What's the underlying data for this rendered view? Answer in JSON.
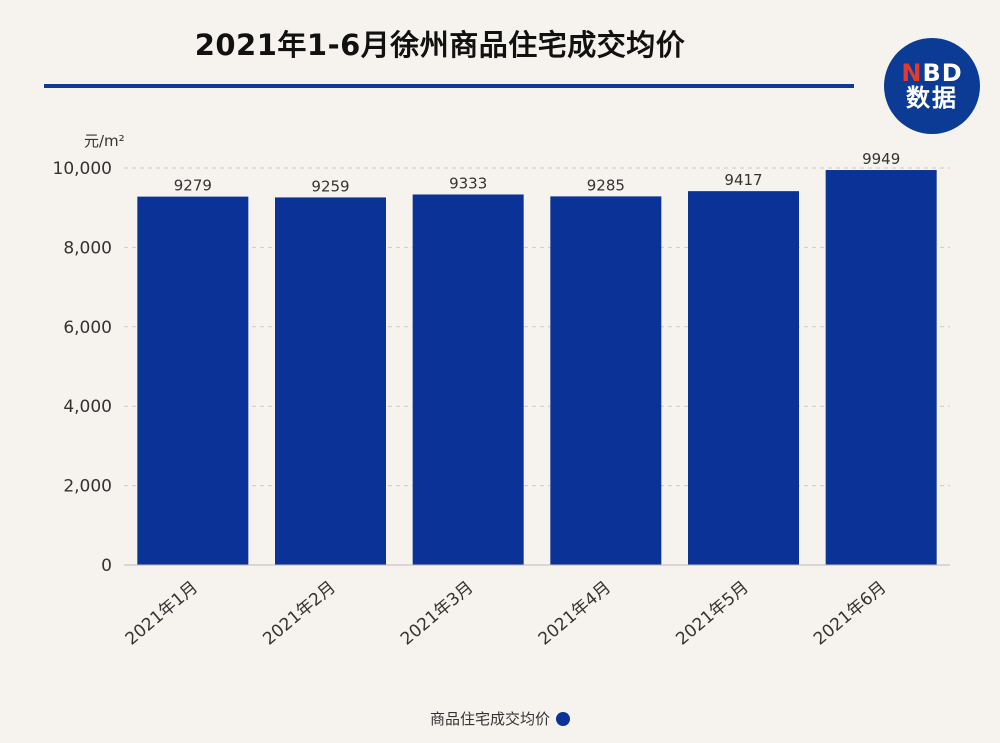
{
  "header": {
    "title": "2021年1-6月徐州商品住宅成交均价"
  },
  "logo": {
    "line1_prefix": "N",
    "line1_rest": "BD",
    "line2": "数据"
  },
  "chart_data": {
    "type": "bar",
    "title": "2021年1-6月徐州商品住宅成交均价",
    "ylabel": "元/m²",
    "categories": [
      "2021年1月",
      "2021年2月",
      "2021年3月",
      "2021年4月",
      "2021年5月",
      "2021年6月"
    ],
    "series": [
      {
        "name": "商品住宅成交均价",
        "values": [
          9279,
          9259,
          9333,
          9285,
          9417,
          9949
        ]
      }
    ],
    "value_labels": [
      "9279",
      "9259",
      "9333",
      "9285",
      "9417",
      "9949"
    ],
    "ylim": [
      0,
      10000
    ],
    "yticks": [
      0,
      2000,
      4000,
      6000,
      8000,
      10000
    ],
    "ytick_labels": [
      "0",
      "2,000",
      "4,000",
      "6,000",
      "8,000",
      "10,000"
    ],
    "grid": true,
    "legend_position": "bottom",
    "colors": {
      "bar": "#0b3296",
      "grid": "#cfcac4",
      "text": "#333333"
    }
  }
}
